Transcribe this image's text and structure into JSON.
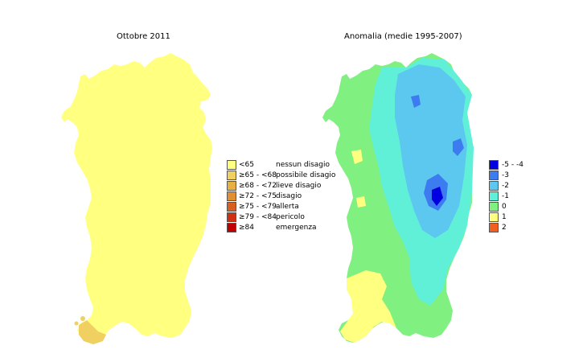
{
  "map1": {
    "title": "Ottobre 2011",
    "fill_color": "#FFFF80",
    "accent_color": "#F0D060",
    "legend": [
      {
        "range": "<65",
        "label": "nessun disagio",
        "color": "#FFFF80"
      },
      {
        "range": "≥65 - <68",
        "label": "possibile disagio",
        "color": "#F0D060"
      },
      {
        "range": "≥68 - <72",
        "label": "lieve disagio",
        "color": "#E8B040"
      },
      {
        "range": "≥72 - <75",
        "label": "disagio",
        "color": "#E09030"
      },
      {
        "range": "≥75 - <79",
        "label": "allerta",
        "color": "#D86020"
      },
      {
        "range": "≥79 - <84",
        "label": "pericolo",
        "color": "#D03010"
      },
      {
        "range": "≥84",
        "label": "emergenza",
        "color": "#C00000"
      }
    ]
  },
  "map2": {
    "title": "Anomalia (medie 1995-2007)",
    "legend": [
      {
        "range": "-5 - -4",
        "color": "#0000E0"
      },
      {
        "range": "-3",
        "color": "#3C7CF0"
      },
      {
        "range": "-2",
        "color": "#5CC8F0"
      },
      {
        "range": "-1",
        "color": "#60F0D8"
      },
      {
        "range": "0",
        "color": "#80F080"
      },
      {
        "range": "1",
        "color": "#FFFF80"
      },
      {
        "range": "2",
        "color": "#F06020"
      }
    ]
  }
}
